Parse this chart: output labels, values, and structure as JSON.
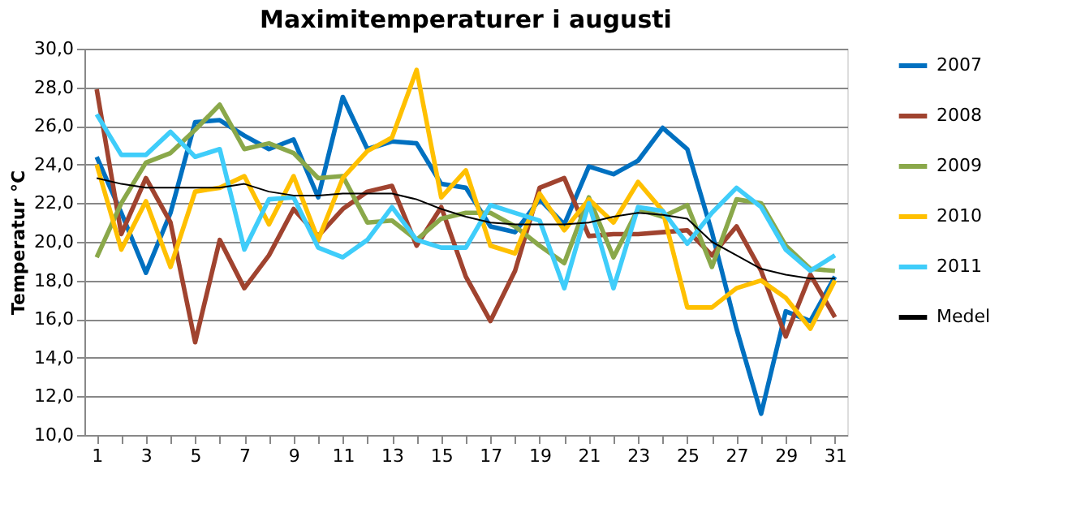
{
  "chart_data": {
    "type": "line",
    "title": "Maximitemperaturer i augusti",
    "ylabel": "Temperatur °C",
    "x": [
      1,
      2,
      3,
      4,
      5,
      6,
      7,
      8,
      9,
      10,
      11,
      12,
      13,
      14,
      15,
      16,
      17,
      18,
      19,
      20,
      21,
      22,
      23,
      24,
      25,
      26,
      27,
      28,
      29,
      30,
      31
    ],
    "xlim": [
      0.5,
      31.5
    ],
    "xticks": [
      1,
      {
        "value": 2,
        "label": null
      },
      3,
      {
        "value": 4,
        "label": null
      },
      5,
      {
        "value": 6,
        "label": null
      },
      7,
      {
        "value": 8,
        "label": null
      },
      9,
      {
        "value": 10,
        "label": null
      },
      11,
      {
        "value": 12,
        "label": null
      },
      13,
      {
        "value": 14,
        "label": null
      },
      15,
      {
        "value": 16,
        "label": null
      },
      17,
      {
        "value": 18,
        "label": null
      },
      19,
      {
        "value": 20,
        "label": null
      },
      21,
      {
        "value": 22,
        "label": null
      },
      23,
      {
        "value": 24,
        "label": null
      },
      25,
      {
        "value": 26,
        "label": null
      },
      27,
      {
        "value": 28,
        "label": null
      },
      29,
      {
        "value": 30,
        "label": null
      },
      31
    ],
    "ylim": [
      10,
      30
    ],
    "yticks": [
      {
        "value": 10,
        "label": "10,0"
      },
      {
        "value": 12,
        "label": "12,0"
      },
      {
        "value": 14,
        "label": "14,0"
      },
      {
        "value": 16,
        "label": "16,0"
      },
      {
        "value": 18,
        "label": "18,0"
      },
      {
        "value": 20,
        "label": "20,0"
      },
      {
        "value": 22,
        "label": "22,0"
      },
      {
        "value": 24,
        "label": "24,0"
      },
      {
        "value": 26,
        "label": "26,0"
      },
      {
        "value": 28,
        "label": "28,0"
      },
      {
        "value": 30,
        "label": "30,0"
      }
    ],
    "grid": "y",
    "legend": "right",
    "marker": "none",
    "line_style": "solid",
    "series": [
      {
        "name": "2007",
        "color": "#0070c0",
        "values": [
          24.4,
          21.5,
          18.4,
          21.5,
          26.2,
          26.3,
          25.5,
          24.8,
          25.3,
          22.3,
          27.5,
          24.8,
          25.2,
          25.1,
          23.0,
          22.8,
          20.8,
          20.5,
          22.2,
          20.9,
          23.9,
          23.5,
          24.2,
          25.9,
          24.8,
          20.5,
          15.5,
          11.1,
          16.4,
          15.9,
          18.2
        ]
      },
      {
        "name": "2008",
        "color": "#a0432f",
        "values": [
          27.9,
          20.4,
          23.3,
          21.0,
          14.8,
          20.1,
          17.6,
          19.3,
          21.7,
          20.3,
          21.7,
          22.6,
          22.9,
          19.8,
          21.8,
          18.2,
          15.9,
          18.5,
          22.8,
          23.3,
          20.3,
          20.4,
          20.4,
          20.5,
          20.6,
          19.3,
          20.8,
          18.5,
          15.1,
          18.3,
          16.1
        ]
      },
      {
        "name": "2009",
        "color": "#8aa84a",
        "values": [
          19.2,
          22.0,
          24.1,
          24.6,
          25.8,
          27.1,
          24.8,
          25.1,
          24.6,
          23.3,
          23.4,
          21.0,
          21.1,
          20.1,
          21.2,
          21.5,
          21.5,
          20.8,
          19.8,
          18.9,
          22.3,
          19.2,
          21.7,
          21.3,
          21.9,
          18.7,
          22.2,
          22.0,
          19.8,
          18.6,
          18.5
        ]
      },
      {
        "name": "2010",
        "color": "#ffc000",
        "values": [
          24.0,
          19.6,
          22.1,
          18.7,
          22.6,
          22.8,
          23.4,
          20.9,
          23.4,
          20.1,
          23.3,
          24.7,
          25.4,
          28.9,
          22.3,
          23.7,
          19.8,
          19.4,
          22.5,
          20.6,
          22.2,
          21.0,
          23.1,
          21.6,
          16.6,
          16.6,
          17.6,
          18.0,
          17.1,
          15.5,
          18.0
        ]
      },
      {
        "name": "2011",
        "color": "#3fcdfa",
        "values": [
          26.6,
          24.5,
          24.5,
          25.7,
          24.4,
          24.8,
          19.6,
          22.2,
          22.3,
          19.7,
          19.2,
          20.1,
          21.8,
          20.1,
          19.7,
          19.7,
          21.9,
          21.5,
          21.1,
          17.6,
          22.0,
          17.6,
          21.8,
          21.6,
          19.9,
          21.5,
          22.8,
          21.8,
          19.6,
          18.5,
          19.3
        ]
      },
      {
        "name": "Medel",
        "color": "#000000",
        "values": [
          23.3,
          23.0,
          22.8,
          22.8,
          22.8,
          22.8,
          23.0,
          22.6,
          22.4,
          22.4,
          22.5,
          22.5,
          22.5,
          22.2,
          21.7,
          21.3,
          21.0,
          20.9,
          20.9,
          20.9,
          21.0,
          21.3,
          21.5,
          21.4,
          21.2,
          20.0,
          19.3,
          18.6,
          18.3,
          18.1,
          18.1
        ]
      }
    ]
  }
}
